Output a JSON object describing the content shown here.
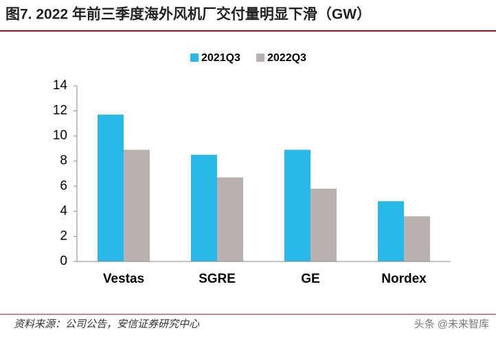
{
  "chart_data": {
    "type": "bar",
    "title": "图7. 2022 年前三季度海外风机厂交付量明显下滑（GW）",
    "categories": [
      "Vestas",
      "SGRE",
      "GE",
      "Nordex"
    ],
    "series": [
      {
        "name": "2021Q3",
        "color": "#29b8e8",
        "values": [
          11.7,
          8.5,
          8.9,
          4.8
        ]
      },
      {
        "name": "2022Q3",
        "color": "#b9b1af",
        "values": [
          8.9,
          6.7,
          5.8,
          3.6
        ]
      }
    ],
    "ylim": [
      0,
      14
    ],
    "yticks": [
      0,
      2,
      4,
      6,
      8,
      10,
      12,
      14
    ],
    "grid": false,
    "legend": "top",
    "source": "资料来源：公司公告，安信证券研究中心",
    "watermark": "头条 @未来智库"
  }
}
